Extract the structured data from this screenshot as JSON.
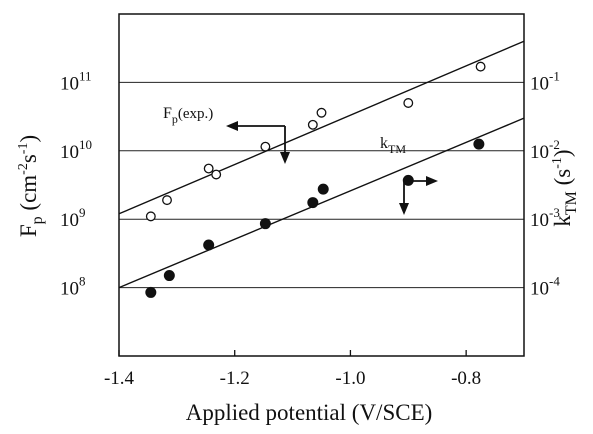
{
  "chart_data": {
    "type": "scatter",
    "title": "",
    "xlabel": "Applied potential (V/SCE)",
    "xlim": [
      -1.4,
      -0.7
    ],
    "x_ticks": [
      -1.4,
      -1.2,
      -1.0,
      -0.8
    ],
    "x_tick_labels": [
      "-1.4",
      "-1.2",
      "-1.0",
      "-0.8"
    ],
    "y_left": {
      "label_main": "F",
      "label_sub": "p",
      "label_units": " (cm",
      "label_units_sup": "-2",
      "label_units_rest": "s",
      "label_units_sup2": "-1",
      "label_close": ")",
      "scale": "log",
      "lim": [
        10000000.0,
        1000000000000.0
      ],
      "ticks": [
        {
          "value": 100000000.0,
          "base": "10",
          "exp": "8"
        },
        {
          "value": 1000000000.0,
          "base": "10",
          "exp": "9"
        },
        {
          "value": 10000000000.0,
          "base": "10",
          "exp": "10"
        },
        {
          "value": 100000000000.0,
          "base": "10",
          "exp": "11"
        }
      ]
    },
    "y_right": {
      "label_main": "k",
      "label_sub": "TM",
      "label_units": " (s",
      "label_units_sup": "-1",
      "label_close": ")",
      "scale": "log",
      "lim": [
        1e-05,
        1
      ],
      "ticks": [
        {
          "value": 0.0001,
          "base": "10",
          "exp": "-4"
        },
        {
          "value": 0.001,
          "base": "10",
          "exp": "-3"
        },
        {
          "value": 0.01,
          "base": "10",
          "exp": "-2"
        },
        {
          "value": 0.1,
          "base": "10",
          "exp": "-1"
        }
      ]
    },
    "grid": {
      "horizontal": true,
      "vertical": false
    },
    "series": [
      {
        "name": "Fp(exp.)",
        "axis": "left",
        "marker": "open-circle",
        "points": [
          {
            "x": -1.345,
            "y": 1100000000.0
          },
          {
            "x": -1.317,
            "y": 1900000000.0
          },
          {
            "x": -1.245,
            "y": 5500000000.0
          },
          {
            "x": -1.232,
            "y": 4500000000.0
          },
          {
            "x": -1.147,
            "y": 11500000000.0
          },
          {
            "x": -1.065,
            "y": 24000000000.0
          },
          {
            "x": -1.05,
            "y": 36000000000.0
          },
          {
            "x": -0.9,
            "y": 50000000000.0
          },
          {
            "x": -0.775,
            "y": 170000000000.0
          }
        ],
        "fit": {
          "x": [
            -1.4,
            -0.7
          ],
          "y": [
            1200000000.0,
            400000000000.0
          ]
        }
      },
      {
        "name": "kTM",
        "axis": "right",
        "marker": "filled-circle",
        "points": [
          {
            "x": -1.345,
            "y": 8.5e-05
          },
          {
            "x": -1.313,
            "y": 0.00015
          },
          {
            "x": -1.245,
            "y": 0.00042
          },
          {
            "x": -1.147,
            "y": 0.00086
          },
          {
            "x": -1.065,
            "y": 0.00175
          },
          {
            "x": -1.047,
            "y": 0.00275
          },
          {
            "x": -0.9,
            "y": 0.0037
          },
          {
            "x": -0.778,
            "y": 0.0125
          }
        ],
        "fit": {
          "x": [
            -1.4,
            -0.7
          ],
          "y": [
            0.0001,
            0.03
          ]
        }
      }
    ],
    "annotations": [
      {
        "id": "fp",
        "main": "F",
        "sub": "p",
        "rest": "(exp.)",
        "arrow": "left-then-down"
      },
      {
        "id": "ktm",
        "main": "k",
        "sub": "TM",
        "rest": "",
        "arrow": "down-then-right"
      }
    ]
  }
}
